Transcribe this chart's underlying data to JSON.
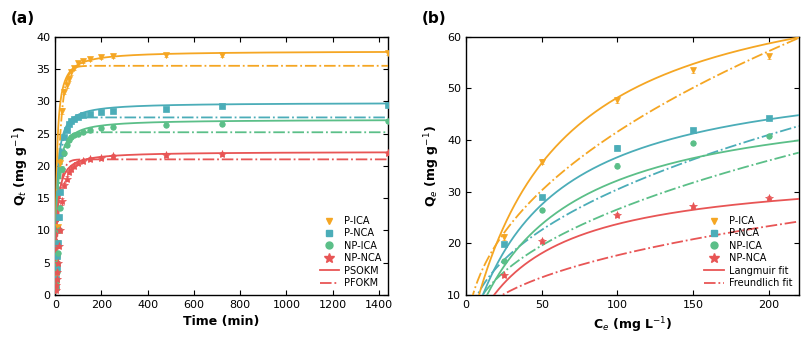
{
  "panel_a": {
    "xlabel": "Time (min)",
    "ylabel": "Q$_t$ (mg g$^{-1}$)",
    "xlim": [
      0,
      1440
    ],
    "ylim": [
      0,
      40
    ],
    "xticks": [
      0,
      200,
      400,
      600,
      800,
      1000,
      1200,
      1400
    ],
    "yticks": [
      0,
      5,
      10,
      15,
      20,
      25,
      30,
      35,
      40
    ],
    "colors": {
      "P-ICA": "#F5A623",
      "P-NCA": "#4BADB8",
      "NP-ICA": "#5BBF88",
      "NP-NCA": "#E85555"
    },
    "data": {
      "P-ICA": {
        "t": [
          2,
          4,
          6,
          8,
          10,
          15,
          20,
          30,
          40,
          50,
          60,
          70,
          80,
          100,
          120,
          150,
          200,
          250,
          480,
          720,
          1440
        ],
        "q": [
          1.5,
          3.0,
          5.5,
          8.0,
          10.5,
          16.0,
          20.5,
          28.5,
          31.5,
          32.5,
          33.5,
          34.5,
          35.2,
          36.0,
          36.3,
          36.5,
          36.8,
          37.0,
          37.2,
          37.2,
          37.5
        ],
        "err": [
          0.2,
          0.2,
          0.3,
          0.3,
          0.4,
          0.4,
          0.5,
          0.5,
          0.4,
          0.4,
          0.4,
          0.4,
          0.3,
          0.3,
          0.3,
          0.3,
          0.3,
          0.3,
          0.3,
          0.3,
          0.3
        ]
      },
      "P-NCA": {
        "t": [
          2,
          4,
          6,
          8,
          10,
          15,
          20,
          30,
          40,
          50,
          60,
          70,
          80,
          100,
          120,
          150,
          200,
          250,
          480,
          720,
          1440
        ],
        "q": [
          1.2,
          2.4,
          4.2,
          6.0,
          8.0,
          12.0,
          16.0,
          22.0,
          24.5,
          25.5,
          26.5,
          27.0,
          27.3,
          27.5,
          27.8,
          28.0,
          28.3,
          28.5,
          28.8,
          29.2,
          29.5
        ],
        "err": [
          0.2,
          0.2,
          0.3,
          0.3,
          0.3,
          0.4,
          0.4,
          0.4,
          0.3,
          0.3,
          0.3,
          0.3,
          0.3,
          0.3,
          0.3,
          0.3,
          0.3,
          0.3,
          0.3,
          0.3,
          0.3
        ]
      },
      "NP-ICA": {
        "t": [
          2,
          4,
          6,
          8,
          10,
          15,
          20,
          30,
          40,
          50,
          60,
          70,
          80,
          100,
          120,
          150,
          200,
          250,
          480,
          720,
          1440
        ],
        "q": [
          1.0,
          2.0,
          3.5,
          5.0,
          6.5,
          10.0,
          13.5,
          19.5,
          22.0,
          23.2,
          24.0,
          24.5,
          24.8,
          25.0,
          25.3,
          25.5,
          25.8,
          26.0,
          26.3,
          26.5,
          27.0
        ],
        "err": [
          0.2,
          0.2,
          0.3,
          0.3,
          0.3,
          0.3,
          0.4,
          0.4,
          0.3,
          0.3,
          0.3,
          0.3,
          0.3,
          0.3,
          0.3,
          0.3,
          0.3,
          0.3,
          0.3,
          0.3,
          0.3
        ]
      },
      "NP-NCA": {
        "t": [
          2,
          4,
          6,
          8,
          10,
          15,
          20,
          30,
          40,
          50,
          60,
          70,
          80,
          100,
          120,
          150,
          200,
          250,
          480,
          720,
          1440
        ],
        "q": [
          0.8,
          1.5,
          2.5,
          3.5,
          5.0,
          7.5,
          10.0,
          14.5,
          17.0,
          18.0,
          19.0,
          19.5,
          20.0,
          20.5,
          20.8,
          21.0,
          21.2,
          21.5,
          21.7,
          21.8,
          22.0
        ],
        "err": [
          0.2,
          0.2,
          0.3,
          0.3,
          0.3,
          0.3,
          0.4,
          0.5,
          0.4,
          0.4,
          0.3,
          0.3,
          0.3,
          0.3,
          0.3,
          0.3,
          0.3,
          0.3,
          0.3,
          0.3,
          0.3
        ]
      }
    },
    "psokm": {
      "P-ICA": {
        "qe": 37.8,
        "k2": 0.0045
      },
      "P-NCA": {
        "qe": 29.8,
        "k2": 0.005
      },
      "NP-ICA": {
        "qe": 27.2,
        "k2": 0.005
      },
      "NP-NCA": {
        "qe": 22.2,
        "k2": 0.006
      }
    },
    "pfokm": {
      "P-ICA": {
        "qe": 35.5,
        "k1": 0.055
      },
      "P-NCA": {
        "qe": 27.5,
        "k1": 0.06
      },
      "NP-ICA": {
        "qe": 25.2,
        "k1": 0.058
      },
      "NP-NCA": {
        "qe": 21.0,
        "k1": 0.065
      }
    }
  },
  "panel_b": {
    "xlabel": "C$_e$ (mg L$^{-1}$)",
    "ylabel": "Q$_e$ (mg g$^{-1}$)",
    "xlim": [
      0,
      220
    ],
    "ylim": [
      10,
      60
    ],
    "xticks": [
      0,
      50,
      100,
      150,
      200
    ],
    "yticks": [
      10,
      20,
      30,
      40,
      50,
      60
    ],
    "colors": {
      "P-ICA": "#F5A623",
      "P-NCA": "#4BADB8",
      "NP-ICA": "#5BBF88",
      "NP-NCA": "#E85555"
    },
    "data": {
      "P-ICA": {
        "ce": [
          25,
          50,
          100,
          150,
          200
        ],
        "qe": [
          21.2,
          35.8,
          47.8,
          53.5,
          56.2
        ],
        "err": [
          0.5,
          0.5,
          0.6,
          0.5,
          0.5
        ]
      },
      "P-NCA": {
        "ce": [
          25,
          50,
          100,
          150,
          200
        ],
        "qe": [
          19.8,
          29.0,
          38.5,
          42.0,
          44.2
        ],
        "err": [
          0.4,
          0.4,
          0.5,
          0.4,
          0.4
        ]
      },
      "NP-ICA": {
        "ce": [
          25,
          50,
          100,
          150,
          200
        ],
        "qe": [
          16.5,
          26.5,
          35.0,
          39.5,
          40.8
        ],
        "err": [
          0.4,
          0.4,
          0.5,
          0.4,
          0.4
        ]
      },
      "NP-NCA": {
        "ce": [
          25,
          50,
          100,
          150,
          200
        ],
        "qe": [
          13.8,
          20.5,
          25.5,
          27.2,
          28.8
        ],
        "err": [
          0.3,
          0.4,
          0.4,
          0.3,
          0.3
        ]
      }
    },
    "langmuir": {
      "P-ICA": {
        "qmax": 75.0,
        "kl": 0.018
      },
      "P-NCA": {
        "qmax": 55.0,
        "kl": 0.02
      },
      "NP-ICA": {
        "qmax": 50.0,
        "kl": 0.018
      },
      "NP-NCA": {
        "qmax": 34.5,
        "kl": 0.022
      }
    },
    "freundlich": {
      "P-ICA": {
        "kf": 5.0,
        "n": 0.46
      },
      "P-NCA": {
        "kf": 4.2,
        "n": 0.43
      },
      "NP-ICA": {
        "kf": 3.5,
        "n": 0.44
      },
      "NP-NCA": {
        "kf": 2.8,
        "n": 0.4
      }
    }
  },
  "series_order": [
    "P-ICA",
    "P-NCA",
    "NP-ICA",
    "NP-NCA"
  ],
  "marker_styles": {
    "P-ICA": "v",
    "P-NCA": "s",
    "NP-ICA": "o",
    "NP-NCA": "*"
  },
  "marker_sizes": {
    "P-ICA": 4,
    "P-NCA": 4,
    "NP-ICA": 4,
    "NP-NCA": 6
  }
}
